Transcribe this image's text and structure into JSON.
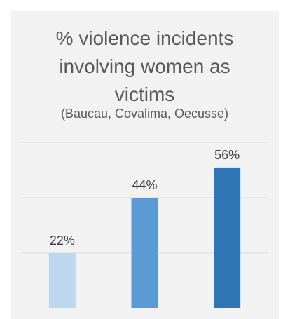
{
  "chart_data": {
    "type": "bar",
    "title": "% violence incidents\ninvolving women as\nvictims",
    "subtitle": "(Baucau, Covalima, Oecusse)",
    "categories": [
      "",
      "",
      ""
    ],
    "values": [
      22,
      44,
      56
    ],
    "data_labels": [
      "22%",
      "44%",
      "56%"
    ],
    "colors": [
      "#bdd7ee",
      "#5b9bd5",
      "#2e75b6"
    ],
    "ylim": [
      0,
      66
    ],
    "grid": true,
    "xlabel": "",
    "ylabel": ""
  }
}
